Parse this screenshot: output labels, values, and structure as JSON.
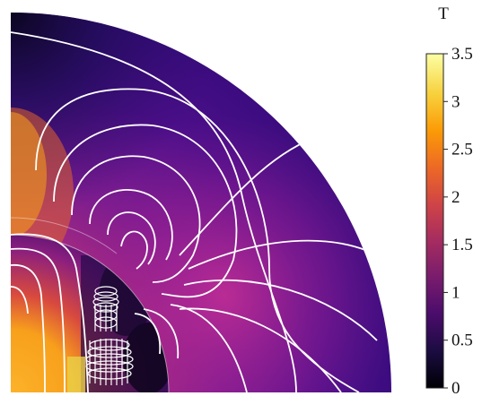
{
  "colorbar": {
    "unit": "T",
    "ticks": [
      "0",
      "0.5",
      "1",
      "1.5",
      "2",
      "2.5",
      "3",
      "3.5"
    ],
    "range": [
      0,
      3.5
    ],
    "colormap": [
      "#000004",
      "#1b0c41",
      "#4a0c6b",
      "#781c6d",
      "#a52c60",
      "#cf4446",
      "#ed6925",
      "#fb9b06",
      "#f7d13d",
      "#fcffa4"
    ]
  },
  "field_plot": {
    "shape": "quarter-disk",
    "contour_color": "#ffffff"
  }
}
